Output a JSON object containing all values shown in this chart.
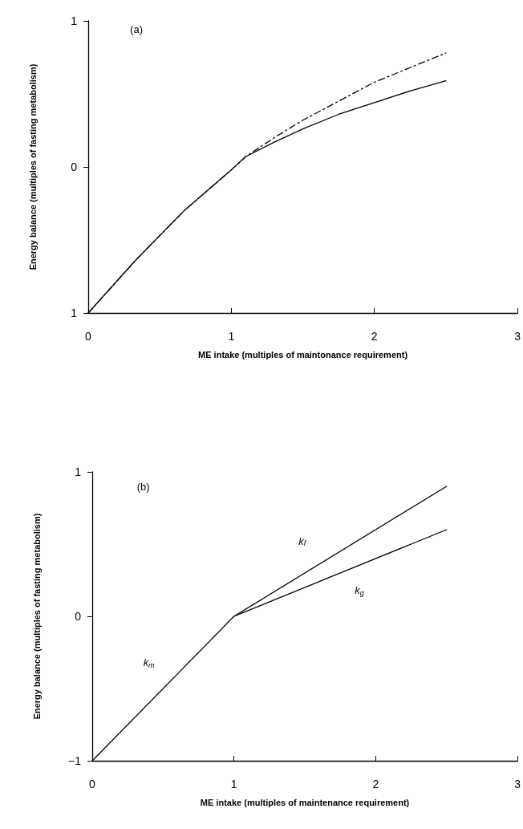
{
  "chart_data": [
    {
      "type": "line",
      "xlabel": "ME intake (multiples of maintonance requirement)",
      "ylabel": "Energy balance (multiples of fasting metabolism)",
      "x": [
        0,
        0.33,
        0.67,
        1.0,
        1.1,
        1.3,
        1.5,
        1.75,
        2.0,
        2.25,
        2.5
      ],
      "series": [
        {
          "color": "#000000",
          "line_style": "solid",
          "values": [
            -1,
            -0.64,
            -0.3,
            -0.02,
            0.07,
            0.17,
            0.26,
            0.36,
            0.44,
            0.52,
            0.59
          ]
        },
        {
          "color": "#000000",
          "line_style": "dashed",
          "values": [
            -1,
            -0.64,
            -0.3,
            -0.02,
            0.07,
            0.2,
            0.32,
            0.45,
            0.58,
            0.68,
            0.78
          ]
        }
      ],
      "xlim": [
        0,
        3
      ],
      "xticks": [
        0,
        1,
        2,
        3
      ],
      "ylim": [
        -1,
        1
      ],
      "yticks": [
        {
          "value": -1,
          "label": "1"
        },
        {
          "value": 0,
          "label": "0"
        },
        {
          "value": 1,
          "label": "1"
        }
      ],
      "marker": "none",
      "grid": false,
      "annotations": [
        "(a)"
      ]
    },
    {
      "type": "line",
      "xlabel": "ME intake (multiples of maintenance requirement)",
      "ylabel": "Energy balance (multiples of fasting metabolism)",
      "series": [
        {
          "color": "#000000",
          "x": [
            0,
            1,
            2.5
          ],
          "values": [
            -1,
            0,
            0.9
          ]
        },
        {
          "color": "#000000",
          "x": [
            1,
            2.5
          ],
          "values": [
            0,
            0.6
          ]
        }
      ],
      "xlim": [
        0,
        3
      ],
      "xticks": [
        0,
        1,
        2,
        3
      ],
      "ylim": [
        -1,
        1
      ],
      "yticks": [
        {
          "value": -1,
          "label": "−1"
        },
        {
          "value": 0,
          "label": "0"
        },
        {
          "value": 1,
          "label": "1"
        }
      ],
      "marker": "none",
      "line_style": "solid",
      "grid": false,
      "annotations": [
        "(b)",
        "k$_{m}$",
        "k$_{f}$",
        "k$_{g}$"
      ]
    }
  ]
}
